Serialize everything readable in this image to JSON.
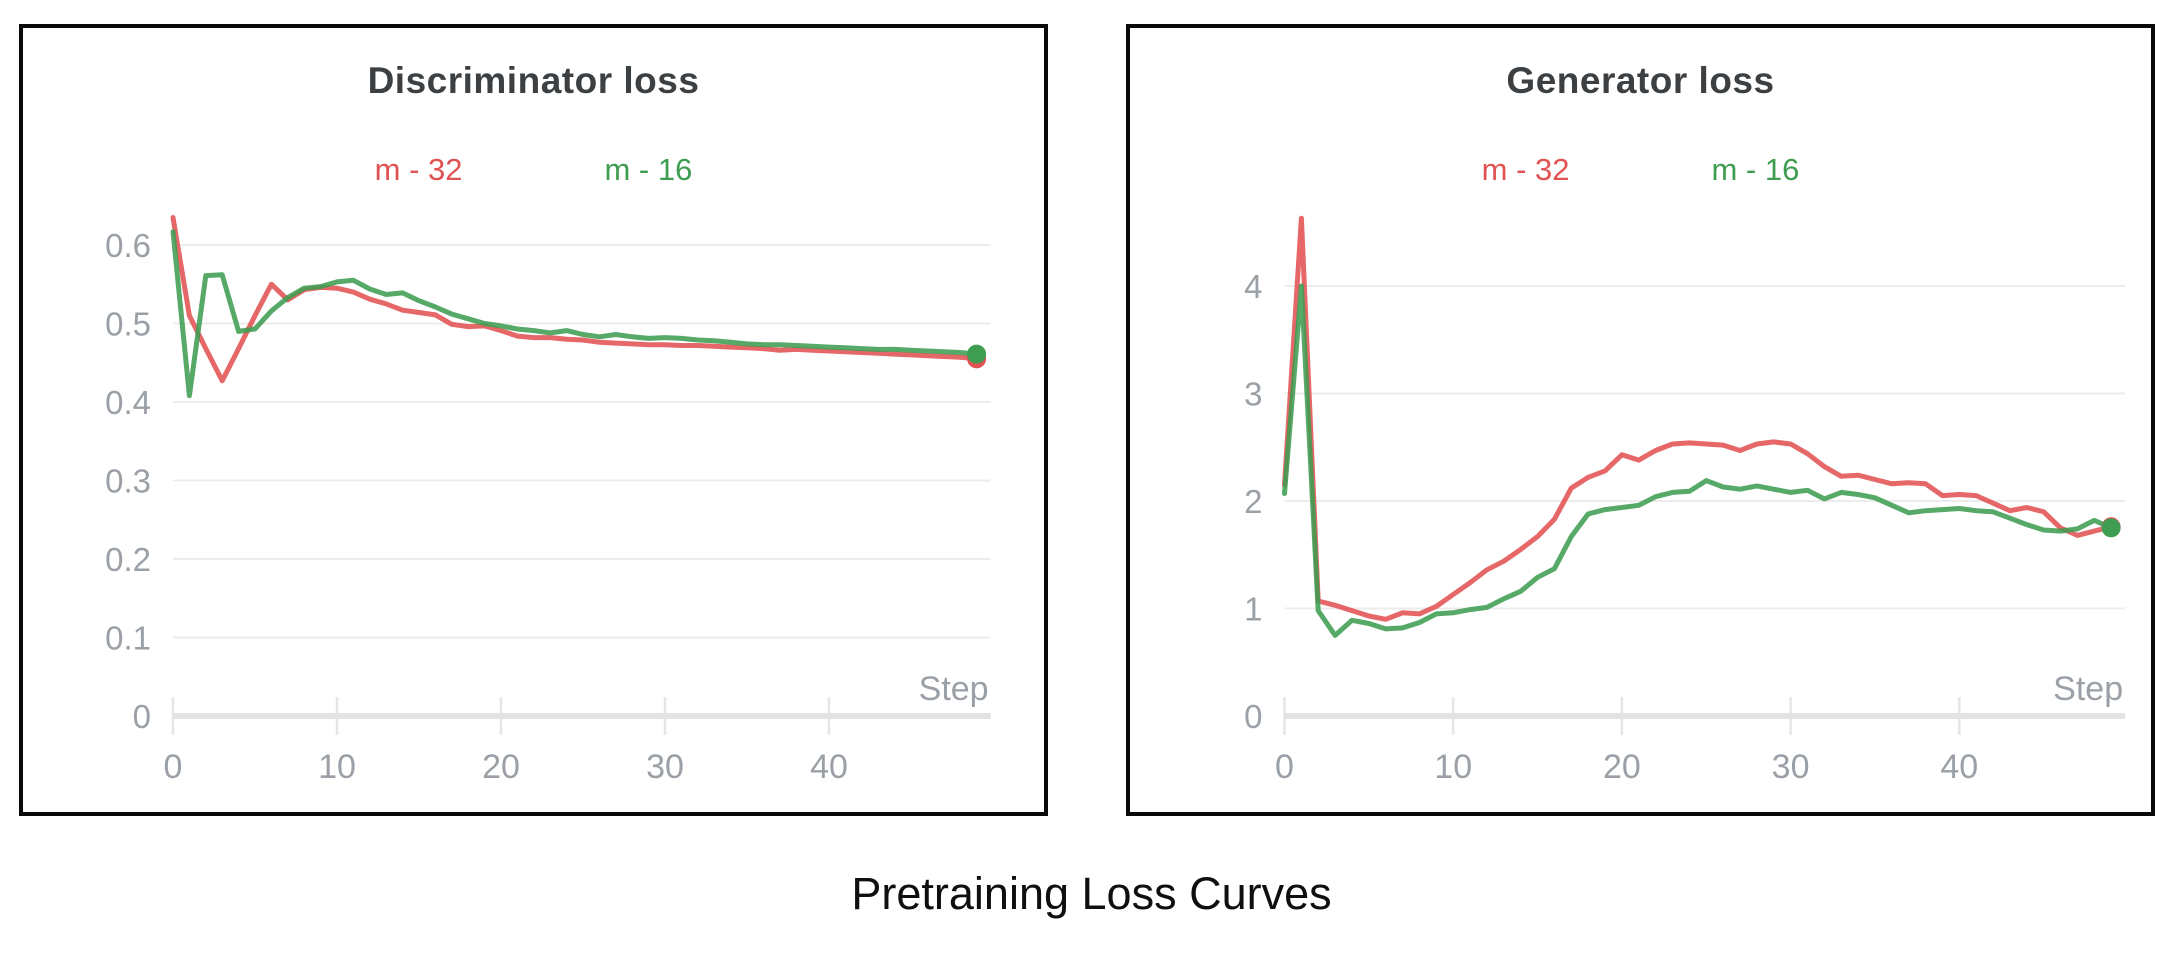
{
  "caption": "Pretraining Loss Curves",
  "styles": {
    "title_color": "#3c4043",
    "axis_label_color": "#9aa0a6",
    "grid_color": "#ececec",
    "baseline_color": "#e3e3e6",
    "tick_color": "#e6e6e9",
    "red": "#e15252",
    "green": "#3f9d52"
  },
  "chart_data": [
    {
      "id": "discriminator-loss",
      "type": "line",
      "title": "Discriminator loss",
      "x_axis_label": "Step",
      "x_ticks": [
        0,
        10,
        20,
        30,
        40
      ],
      "x_range": [
        0,
        49
      ],
      "y_ticks": {
        "values": [
          0,
          0.1,
          0.2,
          0.3,
          0.4,
          0.5,
          0.6
        ],
        "labels": [
          "0",
          "0.1",
          "0.2",
          "0.3",
          "0.4",
          "0.5",
          "0.6"
        ]
      },
      "grid": true,
      "legend_position": "top",
      "end_point_marker": true,
      "series": [
        {
          "name": "m - 32",
          "color": "#e15252",
          "values": [
            0.635,
            0.51,
            0.468,
            0.427,
            0.468,
            0.51,
            0.55,
            0.53,
            0.543,
            0.546,
            0.545,
            0.54,
            0.531,
            0.525,
            0.517,
            0.514,
            0.511,
            0.499,
            0.496,
            0.497,
            0.491,
            0.484,
            0.482,
            0.482,
            0.48,
            0.479,
            0.476,
            0.475,
            0.474,
            0.473,
            0.473,
            0.472,
            0.472,
            0.471,
            0.47,
            0.469,
            0.468,
            0.466,
            0.467,
            0.466,
            0.465,
            0.464,
            0.463,
            0.462,
            0.461,
            0.46,
            0.459,
            0.458,
            0.457,
            0.455
          ]
        },
        {
          "name": "m - 16",
          "color": "#3f9d52",
          "values": [
            0.617,
            0.408,
            0.561,
            0.562,
            0.49,
            0.493,
            0.516,
            0.533,
            0.545,
            0.547,
            0.553,
            0.555,
            0.544,
            0.537,
            0.539,
            0.529,
            0.521,
            0.512,
            0.506,
            0.5,
            0.497,
            0.493,
            0.491,
            0.488,
            0.491,
            0.486,
            0.483,
            0.486,
            0.483,
            0.481,
            0.482,
            0.481,
            0.479,
            0.478,
            0.476,
            0.474,
            0.473,
            0.473,
            0.472,
            0.471,
            0.47,
            0.469,
            0.468,
            0.467,
            0.467,
            0.466,
            0.465,
            0.464,
            0.463,
            0.461
          ]
        }
      ]
    },
    {
      "id": "generator-loss",
      "type": "line",
      "title": "Generator loss",
      "x_axis_label": "Step",
      "x_ticks": [
        0,
        10,
        20,
        30,
        40
      ],
      "x_range": [
        0,
        49
      ],
      "y_ticks": {
        "values": [
          0,
          1,
          2,
          3,
          4
        ],
        "labels": [
          "0",
          "1",
          "2",
          "3",
          "4"
        ]
      },
      "grid": true,
      "legend_position": "top",
      "end_point_marker": true,
      "series": [
        {
          "name": "m - 32",
          "color": "#e15252",
          "values": [
            2.15,
            4.63,
            1.07,
            1.03,
            0.98,
            0.93,
            0.9,
            0.96,
            0.95,
            1.02,
            1.13,
            1.24,
            1.36,
            1.44,
            1.55,
            1.67,
            1.83,
            2.12,
            2.22,
            2.28,
            2.43,
            2.38,
            2.47,
            2.53,
            2.54,
            2.53,
            2.52,
            2.47,
            2.53,
            2.55,
            2.53,
            2.44,
            2.32,
            2.23,
            2.24,
            2.2,
            2.16,
            2.17,
            2.16,
            2.05,
            2.06,
            2.05,
            1.98,
            1.91,
            1.94,
            1.9,
            1.75,
            1.68,
            1.72,
            1.76
          ]
        },
        {
          "name": "m - 16",
          "color": "#3f9d52",
          "values": [
            2.07,
            4.0,
            0.98,
            0.75,
            0.89,
            0.86,
            0.81,
            0.82,
            0.87,
            0.95,
            0.96,
            0.99,
            1.01,
            1.09,
            1.16,
            1.29,
            1.37,
            1.67,
            1.88,
            1.92,
            1.94,
            1.96,
            2.04,
            2.08,
            2.09,
            2.19,
            2.13,
            2.11,
            2.14,
            2.11,
            2.08,
            2.1,
            2.02,
            2.08,
            2.06,
            2.03,
            1.96,
            1.89,
            1.91,
            1.92,
            1.93,
            1.91,
            1.9,
            1.84,
            1.78,
            1.73,
            1.72,
            1.74,
            1.82,
            1.75
          ]
        }
      ]
    }
  ]
}
